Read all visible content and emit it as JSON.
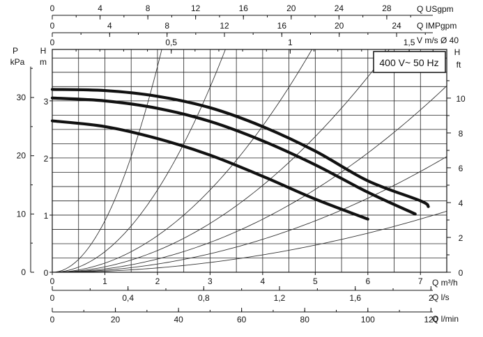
{
  "chart_data": {
    "type": "line",
    "title": "",
    "badge": "400 V~ 50 Hz",
    "grid": true,
    "x": {
      "label": "Q m³/h",
      "range": [
        0,
        7.5
      ],
      "ticks": [
        "0",
        "1",
        "2",
        "3",
        "4",
        "5",
        "6",
        "7"
      ]
    },
    "y": {
      "label_top": "H",
      "unit": "m",
      "range": [
        0,
        3.9
      ],
      "ticks": [
        "0",
        "1",
        "2",
        "3"
      ]
    },
    "left_outer_axis": {
      "label_top": "P",
      "unit": "kPa",
      "ticks": [
        "0",
        "10",
        "20",
        "30"
      ]
    },
    "right_axis": {
      "label_top": "H",
      "unit": "ft",
      "ticks": [
        "0",
        "2",
        "4",
        "6",
        "8",
        "10"
      ]
    },
    "top_axes": [
      {
        "label": "Q USgpm",
        "ticks": [
          "0",
          "4",
          "8",
          "12",
          "16",
          "20",
          "24",
          "28"
        ]
      },
      {
        "label": "Q IMPgpm",
        "ticks": [
          "0",
          "4",
          "8",
          "12",
          "16",
          "20",
          "24"
        ]
      },
      {
        "label": "V m/s Ø 40",
        "ticks": [
          "0",
          "0,5",
          "1",
          "1,5"
        ]
      }
    ],
    "bottom_axes": [
      {
        "label": "Q l/s",
        "ticks": [
          "0",
          "0,4",
          "0,8",
          "1,2",
          "1,6",
          "2"
        ]
      },
      {
        "label": "Q l/min",
        "ticks": [
          "0",
          "20",
          "40",
          "60",
          "80",
          "100",
          "120"
        ]
      }
    ],
    "series": [
      {
        "x": [
          0,
          1,
          2,
          3,
          4,
          5,
          6,
          7,
          7.15
        ],
        "y": [
          3.2,
          3.18,
          3.08,
          2.88,
          2.55,
          2.12,
          1.6,
          1.25,
          1.15
        ]
      },
      {
        "x": [
          0,
          1,
          2,
          3,
          4,
          5,
          6,
          6.9
        ],
        "y": [
          3.05,
          3.0,
          2.87,
          2.64,
          2.3,
          1.88,
          1.4,
          1.02
        ]
      },
      {
        "x": [
          0,
          1,
          2,
          3,
          4,
          5,
          6
        ],
        "y": [
          2.65,
          2.55,
          2.34,
          2.05,
          1.68,
          1.28,
          0.93
        ]
      }
    ],
    "system_curves_k": [
      0.9,
      0.36,
      0.16,
      0.095,
      0.058,
      0.036,
      0.019
    ]
  }
}
